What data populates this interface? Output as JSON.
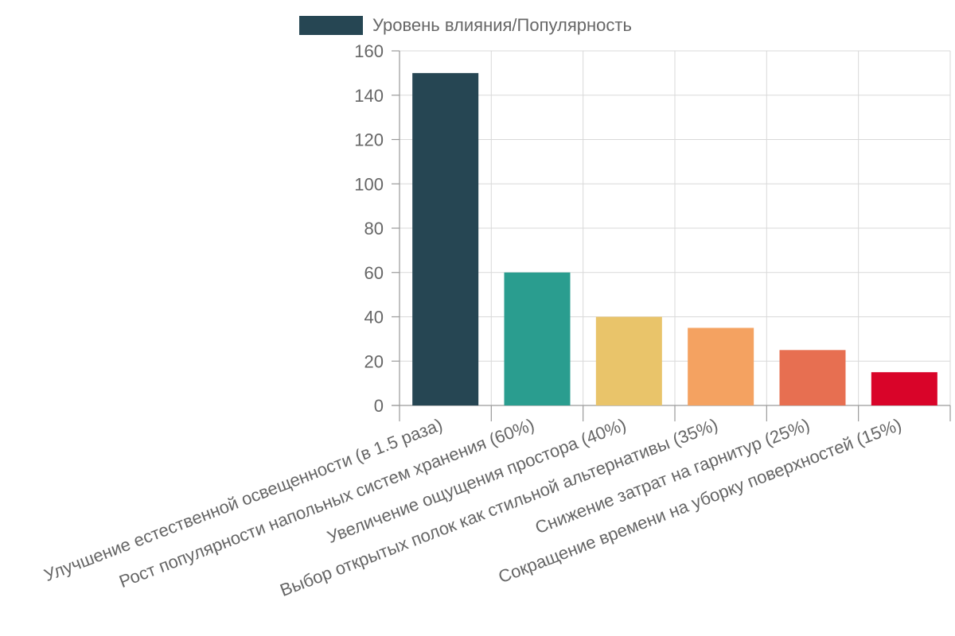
{
  "chart_data": {
    "type": "bar",
    "categories": [
      "Улучшение естественной освещенности (в 1.5 раза)",
      "Рост популярности напольных систем хранения (60%)",
      "Увеличение ощущения простора (40%)",
      "Выбор открытых полок как стильной альтернативы (35%)",
      "Снижение затрат на гарнитур (25%)",
      "Сокращение времени на уборку поверхностей (15%)"
    ],
    "series": [
      {
        "name": "Уровень влияния/Популярность",
        "values": [
          150,
          60,
          40,
          35,
          25,
          15
        ]
      }
    ],
    "bar_colors": [
      "#264653",
      "#2a9d8f",
      "#e9c46a",
      "#f4a261",
      "#e76f51",
      "#d90429"
    ],
    "legend_color": "#264653",
    "y_ticks": [
      0,
      20,
      40,
      60,
      80,
      100,
      120,
      140,
      160
    ],
    "ylim": [
      0,
      160
    ],
    "grid": true,
    "legend_position": "top-center",
    "title": "",
    "xlabel": "",
    "ylabel": ""
  }
}
